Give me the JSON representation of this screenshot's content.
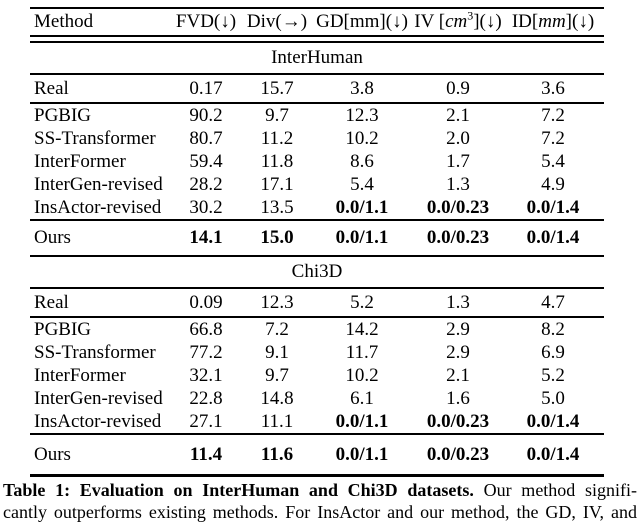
{
  "colors": {
    "background": "#ffffff",
    "text": "#000000",
    "rule": "#000000"
  },
  "table": {
    "headers": {
      "method": "Method",
      "fvd": "FVD(↓)",
      "div": "Div(→)",
      "gd": "GD[mm](↓)",
      "iv_prefix": "IV [",
      "iv_math": "cm",
      "iv_sup": "3",
      "iv_suffix": "](↓)",
      "id_prefix": "ID[",
      "id_math": "mm",
      "id_suffix": "](↓)"
    },
    "sections": [
      {
        "dataset": "InterHuman",
        "real_row": {
          "method": "Real",
          "values": [
            "0.17",
            "15.7",
            "3.8",
            "0.9",
            "3.6"
          ],
          "bold": [
            false,
            false,
            false,
            false,
            false
          ]
        },
        "rows": [
          {
            "method": "PGBIG",
            "values": [
              "90.2",
              "9.7",
              "12.3",
              "2.1",
              "7.2"
            ],
            "bold": [
              false,
              false,
              false,
              false,
              false
            ]
          },
          {
            "method": "SS-Transformer",
            "values": [
              "80.7",
              "11.2",
              "10.2",
              "2.0",
              "7.2"
            ],
            "bold": [
              false,
              false,
              false,
              false,
              false
            ]
          },
          {
            "method": "InterFormer",
            "values": [
              "59.4",
              "11.8",
              "8.6",
              "1.7",
              "5.4"
            ],
            "bold": [
              false,
              false,
              false,
              false,
              false
            ]
          },
          {
            "method": "InterGen-revised",
            "values": [
              "28.2",
              "17.1",
              "5.4",
              "1.3",
              "4.9"
            ],
            "bold": [
              false,
              false,
              false,
              false,
              false
            ]
          },
          {
            "method": "InsActor-revised",
            "values": [
              "30.2",
              "13.5",
              "0.0/1.1",
              "0.0/0.23",
              "0.0/1.4"
            ],
            "bold": [
              false,
              false,
              true,
              true,
              true
            ]
          }
        ],
        "ours_row": {
          "method": "Ours",
          "values": [
            "14.1",
            "15.0",
            "0.0/1.1",
            "0.0/0.23",
            "0.0/1.4"
          ],
          "bold": [
            true,
            true,
            true,
            true,
            true
          ]
        }
      },
      {
        "dataset": "Chi3D",
        "real_row": {
          "method": "Real",
          "values": [
            "0.09",
            "12.3",
            "5.2",
            "1.3",
            "4.7"
          ],
          "bold": [
            false,
            false,
            false,
            false,
            false
          ]
        },
        "rows": [
          {
            "method": "PGBIG",
            "values": [
              "66.8",
              "7.2",
              "14.2",
              "2.9",
              "8.2"
            ],
            "bold": [
              false,
              false,
              false,
              false,
              false
            ]
          },
          {
            "method": "SS-Transformer",
            "values": [
              "77.2",
              "9.1",
              "11.7",
              "2.9",
              "6.9"
            ],
            "bold": [
              false,
              false,
              false,
              false,
              false
            ]
          },
          {
            "method": "InterFormer",
            "values": [
              "32.1",
              "9.7",
              "10.2",
              "2.1",
              "5.2"
            ],
            "bold": [
              false,
              false,
              false,
              false,
              false
            ]
          },
          {
            "method": "InterGen-revised",
            "values": [
              "22.8",
              "14.8",
              "6.1",
              "1.6",
              "5.0"
            ],
            "bold": [
              false,
              false,
              false,
              false,
              false
            ]
          },
          {
            "method": "InsActor-revised",
            "values": [
              "27.1",
              "11.1",
              "0.0/1.1",
              "0.0/0.23",
              "0.0/1.4"
            ],
            "bold": [
              false,
              false,
              true,
              true,
              true
            ]
          }
        ],
        "ours_row": {
          "method": "Ours",
          "values": [
            "11.4",
            "11.6",
            "0.0/1.1",
            "0.0/0.23",
            "0.0/1.4"
          ],
          "bold": [
            true,
            true,
            true,
            true,
            true
          ]
        }
      }
    ]
  },
  "caption": {
    "title_bold": "Table 1: Evaluation on InterHuman and Chi3D datasets.",
    "line1_rest": "Our method signifi-",
    "line2": "cantly outperforms existing methods. For InsActor and our method, the GD, IV, and"
  }
}
